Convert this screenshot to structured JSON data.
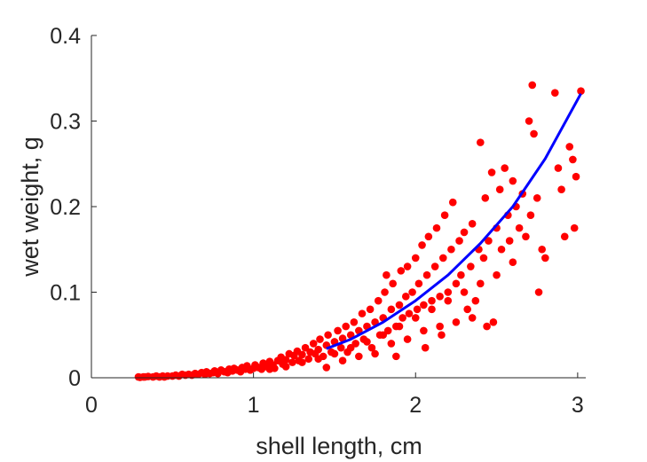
{
  "chart_data": {
    "type": "scatter",
    "title": "",
    "xlabel": "shell length, cm",
    "ylabel": "wet weight, g",
    "xlim": [
      0,
      3.05
    ],
    "ylim": [
      0,
      0.4
    ],
    "xticks": [
      0,
      1,
      2,
      3
    ],
    "yticks": [
      0,
      0.1,
      0.2,
      0.3,
      0.4
    ],
    "xtick_labels": [
      "0",
      "1",
      "2",
      "3"
    ],
    "ytick_labels": [
      "0",
      "0.1",
      "0.2",
      "0.3",
      "0.4"
    ],
    "grid": false,
    "legend": "none",
    "colors": {
      "points": "#ff0000",
      "fit": "#0000ff",
      "axes": "#262626"
    },
    "series": [
      {
        "kind": "points",
        "points": [
          [
            0.29,
            0.001
          ],
          [
            0.3,
            0.0005
          ],
          [
            0.32,
            0.001
          ],
          [
            0.33,
            0.001
          ],
          [
            0.35,
            0.0015
          ],
          [
            0.38,
            0.001
          ],
          [
            0.4,
            0.002
          ],
          [
            0.42,
            0.001
          ],
          [
            0.44,
            0.002
          ],
          [
            0.45,
            0.001
          ],
          [
            0.47,
            0.002
          ],
          [
            0.5,
            0.002
          ],
          [
            0.52,
            0.003
          ],
          [
            0.54,
            0.002
          ],
          [
            0.56,
            0.004
          ],
          [
            0.58,
            0.003
          ],
          [
            0.6,
            0.004
          ],
          [
            0.62,
            0.003
          ],
          [
            0.64,
            0.005
          ],
          [
            0.66,
            0.004
          ],
          [
            0.68,
            0.006
          ],
          [
            0.7,
            0.004
          ],
          [
            0.71,
            0.007
          ],
          [
            0.73,
            0.005
          ],
          [
            0.75,
            0.006
          ],
          [
            0.76,
            0.008
          ],
          [
            0.78,
            0.005
          ],
          [
            0.8,
            0.009
          ],
          [
            0.82,
            0.007
          ],
          [
            0.84,
            0.006
          ],
          [
            0.85,
            0.01
          ],
          [
            0.87,
            0.008
          ],
          [
            0.88,
            0.011
          ],
          [
            0.9,
            0.009
          ],
          [
            0.92,
            0.007
          ],
          [
            0.93,
            0.012
          ],
          [
            0.95,
            0.01
          ],
          [
            0.96,
            0.014
          ],
          [
            0.98,
            0.009
          ],
          [
            1.0,
            0.011
          ],
          [
            1.01,
            0.015
          ],
          [
            1.03,
            0.012
          ],
          [
            1.05,
            0.01
          ],
          [
            1.06,
            0.017
          ],
          [
            1.08,
            0.013
          ],
          [
            1.1,
            0.019
          ],
          [
            1.12,
            0.015
          ],
          [
            1.13,
            0.011
          ],
          [
            1.15,
            0.02
          ],
          [
            1.17,
            0.024
          ],
          [
            1.18,
            0.016
          ],
          [
            1.2,
            0.021
          ],
          [
            1.22,
            0.028
          ],
          [
            1.24,
            0.018
          ],
          [
            1.25,
            0.026
          ],
          [
            1.27,
            0.031
          ],
          [
            1.28,
            0.02
          ],
          [
            1.3,
            0.027
          ],
          [
            1.32,
            0.035
          ],
          [
            1.34,
            0.022
          ],
          [
            1.35,
            0.03
          ],
          [
            1.37,
            0.04
          ],
          [
            1.38,
            0.028
          ],
          [
            1.4,
            0.033
          ],
          [
            1.41,
            0.045
          ],
          [
            1.43,
            0.025
          ],
          [
            1.45,
            0.038
          ],
          [
            1.46,
            0.05
          ],
          [
            1.48,
            0.03
          ],
          [
            1.5,
            0.042
          ],
          [
            1.52,
            0.055
          ],
          [
            1.54,
            0.035
          ],
          [
            1.55,
            0.046
          ],
          [
            1.57,
            0.06
          ],
          [
            1.58,
            0.03
          ],
          [
            1.6,
            0.05
          ],
          [
            1.62,
            0.065
          ],
          [
            1.63,
            0.04
          ],
          [
            1.65,
            0.055
          ],
          [
            1.67,
            0.075
          ],
          [
            1.68,
            0.045
          ],
          [
            1.7,
            0.06
          ],
          [
            1.72,
            0.08
          ],
          [
            1.73,
            0.035
          ],
          [
            1.75,
            0.065
          ],
          [
            1.77,
            0.09
          ],
          [
            1.78,
            0.05
          ],
          [
            1.8,
            0.07
          ],
          [
            1.81,
            0.1
          ],
          [
            1.82,
            0.12
          ],
          [
            1.83,
            0.055
          ],
          [
            1.85,
            0.08
          ],
          [
            1.86,
            0.11
          ],
          [
            1.88,
            0.06
          ],
          [
            1.9,
            0.085
          ],
          [
            1.91,
            0.125
          ],
          [
            1.92,
            0.07
          ],
          [
            1.94,
            0.095
          ],
          [
            1.95,
            0.13
          ],
          [
            1.96,
            0.075
          ],
          [
            1.98,
            0.1
          ],
          [
            2.0,
            0.14
          ],
          [
            2.01,
            0.08
          ],
          [
            2.02,
            0.11
          ],
          [
            2.04,
            0.155
          ],
          [
            2.05,
            0.085
          ],
          [
            2.07,
            0.12
          ],
          [
            2.08,
            0.165
          ],
          [
            2.1,
            0.09
          ],
          [
            2.12,
            0.13
          ],
          [
            2.13,
            0.175
          ],
          [
            2.15,
            0.095
          ],
          [
            2.17,
            0.14
          ],
          [
            2.18,
            0.19
          ],
          [
            2.2,
            0.1
          ],
          [
            2.22,
            0.15
          ],
          [
            2.23,
            0.205
          ],
          [
            2.25,
            0.11
          ],
          [
            2.27,
            0.16
          ],
          [
            2.28,
            0.12
          ],
          [
            2.3,
            0.17
          ],
          [
            2.32,
            0.08
          ],
          [
            2.34,
            0.13
          ],
          [
            2.35,
            0.18
          ],
          [
            2.37,
            0.09
          ],
          [
            2.39,
            0.15
          ],
          [
            2.4,
            0.275
          ],
          [
            2.42,
            0.14
          ],
          [
            2.43,
            0.21
          ],
          [
            2.45,
            0.16
          ],
          [
            2.47,
            0.24
          ],
          [
            2.48,
            0.065
          ],
          [
            2.5,
            0.175
          ],
          [
            2.52,
            0.22
          ],
          [
            2.53,
            0.15
          ],
          [
            2.55,
            0.245
          ],
          [
            2.57,
            0.19
          ],
          [
            2.58,
            0.16
          ],
          [
            2.6,
            0.23
          ],
          [
            2.62,
            0.2
          ],
          [
            2.64,
            0.175
          ],
          [
            2.66,
            0.215
          ],
          [
            2.68,
            0.165
          ],
          [
            2.7,
            0.3
          ],
          [
            2.71,
            0.19
          ],
          [
            2.72,
            0.342
          ],
          [
            2.73,
            0.285
          ],
          [
            2.75,
            0.21
          ],
          [
            2.76,
            0.1
          ],
          [
            2.78,
            0.15
          ],
          [
            2.8,
            0.14
          ],
          [
            2.86,
            0.333
          ],
          [
            2.88,
            0.245
          ],
          [
            2.9,
            0.22
          ],
          [
            2.92,
            0.165
          ],
          [
            2.95,
            0.27
          ],
          [
            2.97,
            0.255
          ],
          [
            2.99,
            0.235
          ],
          [
            3.02,
            0.335
          ],
          [
            2.98,
            0.175
          ],
          [
            1.1,
            0.01
          ],
          [
            1.2,
            0.013
          ],
          [
            1.3,
            0.018
          ],
          [
            1.4,
            0.022
          ],
          [
            1.5,
            0.028
          ],
          [
            1.6,
            0.035
          ],
          [
            1.7,
            0.042
          ],
          [
            1.8,
            0.05
          ],
          [
            1.9,
            0.06
          ],
          [
            2.0,
            0.07
          ],
          [
            2.1,
            0.08
          ],
          [
            2.2,
            0.09
          ],
          [
            2.3,
            0.1
          ],
          [
            2.4,
            0.11
          ],
          [
            2.5,
            0.12
          ],
          [
            2.6,
            0.135
          ],
          [
            1.45,
            0.012
          ],
          [
            1.55,
            0.02
          ],
          [
            1.65,
            0.025
          ],
          [
            1.75,
            0.028
          ],
          [
            1.85,
            0.04
          ],
          [
            1.95,
            0.045
          ],
          [
            2.05,
            0.055
          ],
          [
            2.15,
            0.06
          ],
          [
            2.25,
            0.065
          ],
          [
            2.35,
            0.07
          ],
          [
            1.88,
            0.025
          ],
          [
            2.06,
            0.035
          ],
          [
            2.16,
            0.05
          ],
          [
            2.44,
            0.06
          ]
        ]
      },
      {
        "kind": "fit-curve",
        "points": [
          [
            1.45,
            0.034
          ],
          [
            1.6,
            0.045
          ],
          [
            1.8,
            0.065
          ],
          [
            2.0,
            0.09
          ],
          [
            2.2,
            0.12
          ],
          [
            2.4,
            0.157
          ],
          [
            2.6,
            0.2
          ],
          [
            2.8,
            0.256
          ],
          [
            3.02,
            0.332
          ]
        ]
      }
    ]
  }
}
